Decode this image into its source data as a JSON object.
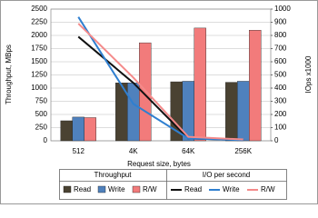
{
  "chart_data": {
    "type": "bar",
    "categories": [
      "512",
      "4K",
      "64K",
      "256K"
    ],
    "xlabel": "Request size, bytes",
    "ylabel": "Throughput, MBps",
    "y2label": "IOps x1000",
    "ylim": [
      0,
      2500
    ],
    "yticks": [
      0,
      250,
      500,
      750,
      1000,
      1250,
      1500,
      1750,
      2000,
      2250,
      2500
    ],
    "y2lim": [
      0,
      1000
    ],
    "y2ticks": [
      0,
      100,
      200,
      300,
      400,
      500,
      600,
      700,
      800,
      900,
      1000
    ],
    "grid": true,
    "legend_titles": [
      "Throughput",
      "I/O per second"
    ],
    "series": [
      {
        "name": "Read",
        "type": "bar",
        "color": "#4a4232",
        "values": [
          380,
          1100,
          1120,
          1110
        ]
      },
      {
        "name": "Write",
        "type": "bar",
        "color": "#4f81bd",
        "values": [
          450,
          1100,
          1130,
          1130
        ]
      },
      {
        "name": "R/W",
        "type": "bar",
        "color": "#f27b7b",
        "values": [
          440,
          1860,
          2140,
          2100
        ]
      },
      {
        "name": "Read",
        "type": "line",
        "axis": "y2",
        "color": "#111111",
        "values": [
          790,
          440,
          18,
          5
        ]
      },
      {
        "name": "Write",
        "type": "line",
        "axis": "y2",
        "color": "#2f7fd0",
        "values": [
          940,
          280,
          18,
          5
        ]
      },
      {
        "name": "R/W",
        "type": "line",
        "axis": "y2",
        "color": "#f48a8a",
        "values": [
          890,
          480,
          30,
          10
        ]
      }
    ]
  }
}
